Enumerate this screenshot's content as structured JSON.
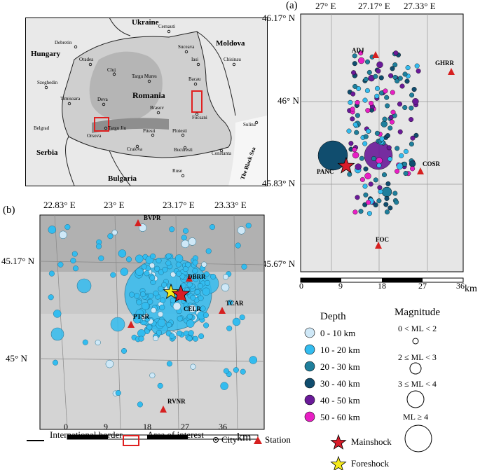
{
  "overview_map": {
    "countries": [
      "Ukraine",
      "Moldova",
      "Hungary",
      "Romania",
      "Serbia",
      "Bulgaria"
    ],
    "cities": [
      "Cernauti",
      "Debretin",
      "Oradea",
      "Cluj",
      "Targu Mures",
      "Suceava",
      "Iasi",
      "Chisinau",
      "Bacau",
      "Szeghedin",
      "Timisoara",
      "Deva",
      "Brasov",
      "Focsani",
      "Sulina",
      "Belgrad",
      "Orsova",
      "Targu Jiu",
      "Pitesti",
      "Ploiesti",
      "Craiova",
      "Bucuresti",
      "Constanta",
      "Ruse"
    ],
    "sea": "The Black Sea"
  },
  "panel_a": {
    "label": "(a)",
    "lon_ticks": [
      "27° E",
      "27.17° E",
      "27.33° E"
    ],
    "lat_ticks": [
      "46.17° N",
      "46° N",
      "45.83° N",
      "45.67° N"
    ],
    "stations": [
      "ADJ",
      "GHRR",
      "PANC",
      "COSR",
      "FOC"
    ],
    "scale": [
      "0",
      "9",
      "18",
      "27",
      "36"
    ],
    "scale_unit": "km"
  },
  "panel_b": {
    "label": "(b)",
    "lon_ticks": [
      "22.83° E",
      "23° E",
      "23.17° E",
      "23.33° E"
    ],
    "lat_ticks": [
      "45.17° N",
      "45° N"
    ],
    "stations": [
      "BVPR",
      "DBRR",
      "CELR",
      "TCAR",
      "PTSR",
      "RVNR"
    ],
    "scale": [
      "0",
      "9",
      "18",
      "27",
      "36"
    ],
    "scale_unit": "km"
  },
  "legend": {
    "depth_title": "Depth",
    "depth_items": [
      {
        "label": "0 - 10 km",
        "color": "#cfe8f7"
      },
      {
        "label": "10 - 20 km",
        "color": "#33bcef"
      },
      {
        "label": "20 - 30 km",
        "color": "#1f7f9c"
      },
      {
        "label": "30 - 40 km",
        "color": "#104d6e"
      },
      {
        "label": "40 - 50 km",
        "color": "#6a1a99"
      },
      {
        "label": "50 - 60 km",
        "color": "#e81fc4"
      }
    ],
    "magnitude_title": "Magnitude",
    "magnitude_items": [
      "0 < ML < 2",
      "2 ≤ ML < 3",
      "3 ≤ ML < 4",
      "ML ≥ 4"
    ],
    "mainshock": "Mainshock",
    "foreshock": "Foreshock"
  },
  "bottom_legend": {
    "border": "International border",
    "area": "Area of interest",
    "city": "City",
    "station": "Station"
  },
  "colors": {
    "station": "#d62020",
    "star_main": "#d81c2a",
    "star_fore": "#f5ea1c",
    "area_box": "#e02020"
  }
}
